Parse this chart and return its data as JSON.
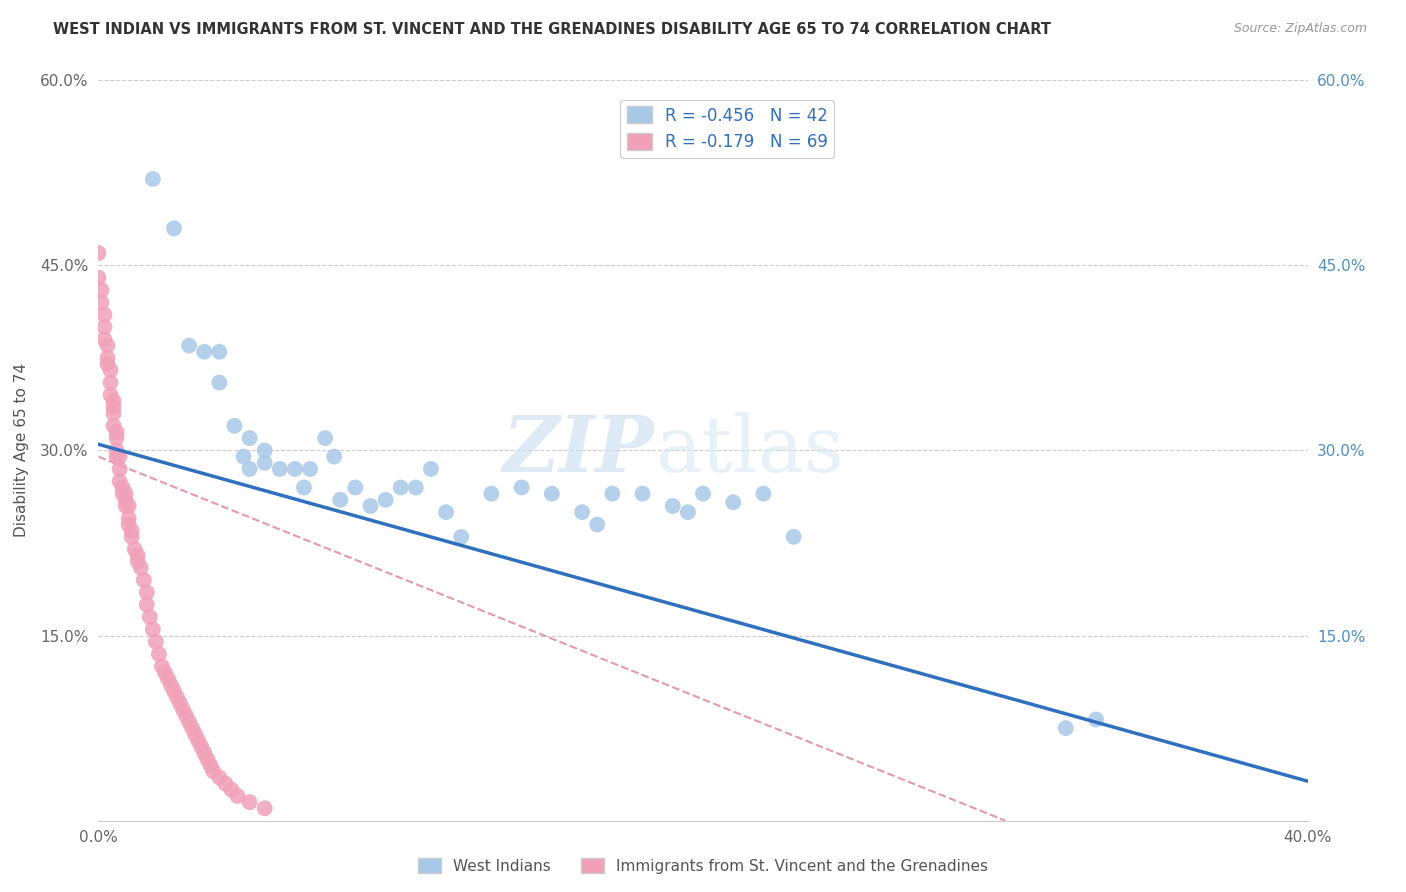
{
  "title": "WEST INDIAN VS IMMIGRANTS FROM ST. VINCENT AND THE GRENADINES DISABILITY AGE 65 TO 74 CORRELATION CHART",
  "source": "Source: ZipAtlas.com",
  "ylabel": "Disability Age 65 to 74",
  "xlim": [
    0,
    0.4
  ],
  "ylim": [
    0,
    0.6
  ],
  "xtick_positions": [
    0.0,
    0.05,
    0.1,
    0.15,
    0.2,
    0.25,
    0.3,
    0.35,
    0.4
  ],
  "xticklabels": [
    "0.0%",
    "",
    "",
    "",
    "",
    "",
    "",
    "",
    "40.0%"
  ],
  "ytick_positions": [
    0.0,
    0.15,
    0.3,
    0.45,
    0.6
  ],
  "yticklabels_left": [
    "",
    "15.0%",
    "30.0%",
    "45.0%",
    "60.0%"
  ],
  "yticklabels_right": [
    "",
    "15.0%",
    "30.0%",
    "45.0%",
    "60.0%"
  ],
  "color_blue": "#a8c8e8",
  "color_pink": "#f0a0b8",
  "line_blue": "#3070c0",
  "line_pink": "#e08090",
  "watermark_zip": "ZIP",
  "watermark_atlas": "atlas",
  "legend_label1": "R = -0.456   N = 42",
  "legend_label2": "R = -0.179   N = 69",
  "legend_label_blue": "West Indians",
  "legend_label_pink": "Immigrants from St. Vincent and the Grenadines",
  "blue_line_x": [
    0.0,
    0.4
  ],
  "blue_line_y": [
    0.305,
    0.032
  ],
  "pink_line_x": [
    0.0,
    0.3
  ],
  "pink_line_y": [
    0.295,
    0.0
  ],
  "wi_x": [
    0.018,
    0.025,
    0.03,
    0.035,
    0.04,
    0.04,
    0.045,
    0.048,
    0.05,
    0.05,
    0.055,
    0.055,
    0.06,
    0.065,
    0.068,
    0.07,
    0.075,
    0.078,
    0.08,
    0.085,
    0.09,
    0.095,
    0.1,
    0.105,
    0.11,
    0.115,
    0.12,
    0.13,
    0.14,
    0.15,
    0.16,
    0.165,
    0.17,
    0.18,
    0.19,
    0.195,
    0.2,
    0.21,
    0.22,
    0.23,
    0.32,
    0.33
  ],
  "wi_y": [
    0.52,
    0.48,
    0.385,
    0.38,
    0.38,
    0.355,
    0.32,
    0.295,
    0.31,
    0.285,
    0.3,
    0.29,
    0.285,
    0.285,
    0.27,
    0.285,
    0.31,
    0.295,
    0.26,
    0.27,
    0.255,
    0.26,
    0.27,
    0.27,
    0.285,
    0.25,
    0.23,
    0.265,
    0.27,
    0.265,
    0.25,
    0.24,
    0.265,
    0.265,
    0.255,
    0.25,
    0.265,
    0.258,
    0.265,
    0.23,
    0.075,
    0.082
  ],
  "sv_x": [
    0.0,
    0.0,
    0.001,
    0.001,
    0.002,
    0.002,
    0.002,
    0.003,
    0.003,
    0.003,
    0.004,
    0.004,
    0.004,
    0.005,
    0.005,
    0.005,
    0.005,
    0.006,
    0.006,
    0.006,
    0.006,
    0.007,
    0.007,
    0.007,
    0.008,
    0.008,
    0.009,
    0.009,
    0.009,
    0.01,
    0.01,
    0.01,
    0.011,
    0.011,
    0.012,
    0.013,
    0.013,
    0.014,
    0.015,
    0.016,
    0.016,
    0.017,
    0.018,
    0.019,
    0.02,
    0.021,
    0.022,
    0.023,
    0.024,
    0.025,
    0.026,
    0.027,
    0.028,
    0.029,
    0.03,
    0.031,
    0.032,
    0.033,
    0.034,
    0.035,
    0.036,
    0.037,
    0.038,
    0.04,
    0.042,
    0.044,
    0.046,
    0.05,
    0.055
  ],
  "sv_y": [
    0.46,
    0.44,
    0.43,
    0.42,
    0.41,
    0.4,
    0.39,
    0.385,
    0.375,
    0.37,
    0.365,
    0.355,
    0.345,
    0.34,
    0.335,
    0.33,
    0.32,
    0.315,
    0.31,
    0.3,
    0.295,
    0.295,
    0.285,
    0.275,
    0.27,
    0.265,
    0.265,
    0.26,
    0.255,
    0.255,
    0.245,
    0.24,
    0.235,
    0.23,
    0.22,
    0.215,
    0.21,
    0.205,
    0.195,
    0.185,
    0.175,
    0.165,
    0.155,
    0.145,
    0.135,
    0.125,
    0.12,
    0.115,
    0.11,
    0.105,
    0.1,
    0.095,
    0.09,
    0.085,
    0.08,
    0.075,
    0.07,
    0.065,
    0.06,
    0.055,
    0.05,
    0.045,
    0.04,
    0.035,
    0.03,
    0.025,
    0.02,
    0.015,
    0.01
  ]
}
